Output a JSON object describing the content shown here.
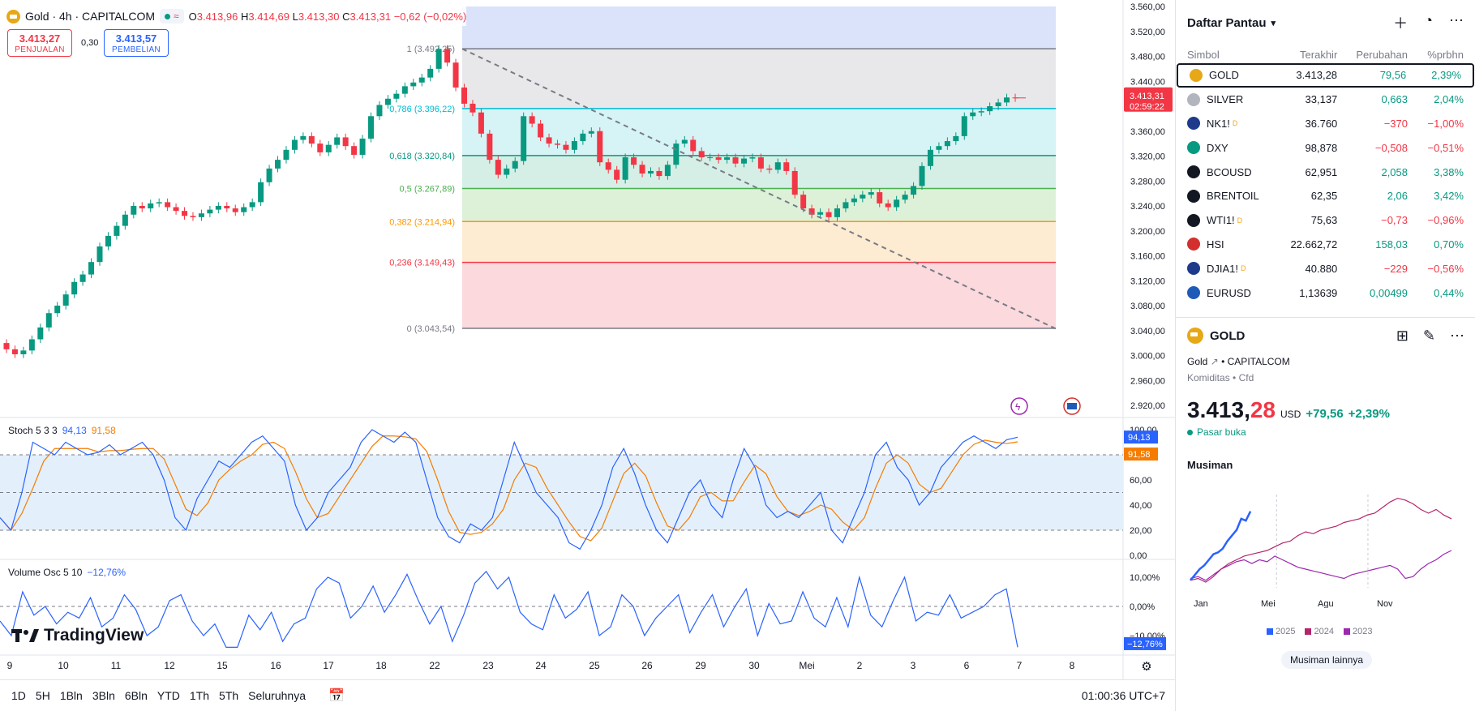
{
  "header": {
    "symbol_title": "Gold · 4h · CAPITALCOM",
    "ohlc": {
      "o_label": "O",
      "o": "3.413,96",
      "h_label": "H",
      "h": "3.414,69",
      "l_label": "L",
      "l": "3.413,30",
      "c_label": "C",
      "c": "3.413,31",
      "chg": "−0,62 (−0,02%)"
    },
    "sell": {
      "price": "3.413,27",
      "label": "PENJUALAN"
    },
    "buy": {
      "price": "3.413,57",
      "label": "PEMBELIAN"
    },
    "spread": "0,30"
  },
  "price_axis": {
    "ticks": [
      "3.560,00",
      "3.520,00",
      "3.480,00",
      "3.440,00",
      "3.400,00",
      "3.360,00",
      "3.320,00",
      "3.280,00",
      "3.240,00",
      "3.200,00",
      "3.160,00",
      "3.120,00",
      "3.080,00",
      "3.040,00",
      "3.000,00",
      "2.960,00",
      "2.920,00"
    ],
    "last_price": "3.413,31",
    "countdown": "02:59:22"
  },
  "fib_levels": [
    {
      "label": "1 (3.492,25)",
      "value": 3492.25,
      "color": "#787b86"
    },
    {
      "label": "0,786 (3.396,22)",
      "value": 3396.22,
      "color": "#00bcd4"
    },
    {
      "label": "0,618 (3.320,84)",
      "value": 3320.84,
      "color": "#089981"
    },
    {
      "label": "0,5 (3.267,89)",
      "value": 3267.89,
      "color": "#4caf50"
    },
    {
      "label": "0,382 (3.214,94)",
      "value": 3214.94,
      "color": "#ff9800"
    },
    {
      "label": "0,236 (3.149,43)",
      "value": 3149.43,
      "color": "#f23645"
    },
    {
      "label": "0 (3.043,54)",
      "value": 3043.54,
      "color": "#787b86"
    }
  ],
  "time_axis": [
    "9",
    "10",
    "11",
    "12",
    "15",
    "16",
    "17",
    "18",
    "22",
    "23",
    "24",
    "25",
    "26",
    "29",
    "30",
    "Mei",
    "2",
    "3",
    "6",
    "7",
    "8"
  ],
  "stoch": {
    "title": "Stoch 5 3 3",
    "k": "94,13",
    "d": "91,58",
    "k_color": "#2962ff",
    "d_color": "#f57c00",
    "ticks": [
      "100,00",
      "80,00",
      "60,00",
      "40,00",
      "20,00",
      "0,00"
    ]
  },
  "volume_osc": {
    "title": "Volume Osc 5 10",
    "value": "−12,76%",
    "ticks": [
      "10,00%",
      "0,00%",
      "−10,00%"
    ]
  },
  "branding": "TradingView",
  "bottom_bar": {
    "timeframes": [
      "1D",
      "5H",
      "1Bln",
      "3Bln",
      "6Bln",
      "YTD",
      "1Th",
      "5Th",
      "Seluruhnya"
    ],
    "clock": "01:00:36 UTC+7"
  },
  "watchlist": {
    "title": "Daftar Pantau",
    "columns": [
      "Simbol",
      "Terakhir",
      "Perubahan",
      "%prbhn"
    ],
    "rows": [
      {
        "symbol": "GOLD",
        "last": "3.413,28",
        "change": "79,56",
        "pct": "2,39%",
        "dir": "pos",
        "icon_color": "#e6a817",
        "icon": "gold-icon"
      },
      {
        "symbol": "SILVER",
        "last": "33,137",
        "change": "0,663",
        "pct": "2,04%",
        "dir": "pos",
        "icon_color": "#b2b5be",
        "icon": "silver-icon"
      },
      {
        "symbol": "NK1!",
        "last": "36.760",
        "change": "−370",
        "pct": "−1,00%",
        "dir": "neg",
        "icon_color": "#1e3a8a",
        "icon": "nikkei-icon",
        "sup": "D"
      },
      {
        "symbol": "DXY",
        "last": "98,878",
        "change": "−0,508",
        "pct": "−0,51%",
        "dir": "neg",
        "icon_color": "#089981",
        "icon": "dollar-icon"
      },
      {
        "symbol": "BCOUSD",
        "last": "62,951",
        "change": "2,058",
        "pct": "3,38%",
        "dir": "pos",
        "icon_color": "#131722",
        "icon": "oil-drop-icon"
      },
      {
        "symbol": "BRENTOIL",
        "last": "62,35",
        "change": "2,06",
        "pct": "3,42%",
        "dir": "pos",
        "icon_color": "#131722",
        "icon": "oil-drop-icon"
      },
      {
        "symbol": "WTI1!",
        "last": "75,63",
        "change": "−0,73",
        "pct": "−0,96%",
        "dir": "neg",
        "icon_color": "#131722",
        "icon": "oil-drop-icon",
        "sup": "D"
      },
      {
        "symbol": "HSI",
        "last": "22.662,72",
        "change": "158,03",
        "pct": "0,70%",
        "dir": "pos",
        "icon_color": "#d32f2f",
        "icon": "hsi-icon"
      },
      {
        "symbol": "DJIA1!",
        "last": "40.880",
        "change": "−229",
        "pct": "−0,56%",
        "dir": "neg",
        "icon_color": "#1e3a8a",
        "icon": "us-flag-icon",
        "sup": "D"
      },
      {
        "symbol": "EURUSD",
        "last": "1,13639",
        "change": "0,00499",
        "pct": "0,44%",
        "dir": "pos",
        "icon_color": "#1e5bb8",
        "icon": "eu-flag-icon"
      }
    ]
  },
  "details": {
    "symbol": "GOLD",
    "desc": "Gold",
    "exchange": "CAPITALCOM",
    "category": "Komiditas",
    "type": "Cfd",
    "price_main": "3.413,",
    "price_tail": "28",
    "currency": "USD",
    "change": "+79,56",
    "change_pct": "+2,39%",
    "market_status": "Pasar buka",
    "seasonal_title": "Musiman",
    "seasonal_months": [
      "Jan",
      "Mei",
      "Agu",
      "Nov"
    ],
    "seasonal_legend": [
      {
        "year": "2025",
        "color": "#2962ff"
      },
      {
        "year": "2024",
        "color": "#b4256b"
      },
      {
        "year": "2023",
        "color": "#9c27b0"
      }
    ],
    "more_button": "Musiman lainnya"
  }
}
